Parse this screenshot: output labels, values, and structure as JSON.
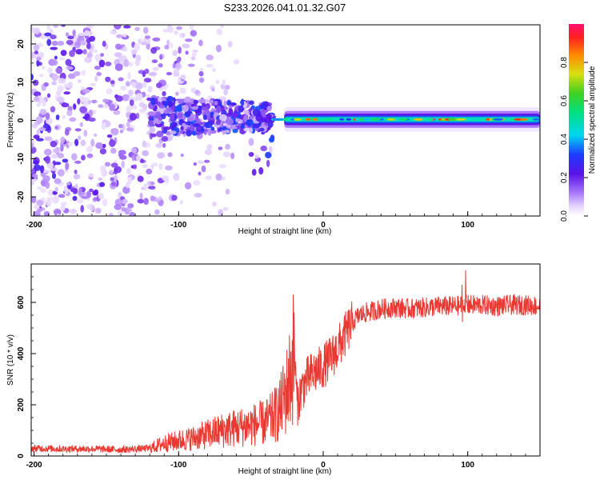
{
  "title": "S233.2026.041.01.32.G07",
  "chart_data": [
    {
      "type": "heatmap",
      "title": "S233.2026.041.01.32.G07",
      "xlabel": "Height of straight line (km)",
      "ylabel": "Frequency (Hz)",
      "xlim": [
        -202,
        150
      ],
      "ylim": [
        -25,
        25
      ],
      "xticks": [
        -200,
        -100,
        0,
        100
      ],
      "yticks": [
        -20,
        -10,
        0,
        10,
        20
      ],
      "colorbar": {
        "label": "Normalized spectral amplitude",
        "range": [
          0,
          1
        ],
        "ticks": [
          "0.0",
          "0.2",
          "0.4",
          "0.6",
          "0.8"
        ]
      },
      "regions": [
        {
          "name": "noise",
          "x": [
            -202,
            -120
          ],
          "freq": [
            -25,
            25
          ],
          "amplitude": [
            0.0,
            0.25
          ]
        },
        {
          "name": "onset",
          "x": [
            -120,
            -35
          ],
          "freq": [
            -5,
            8
          ],
          "amplitude": [
            0.05,
            0.35
          ]
        },
        {
          "name": "tone",
          "x": [
            -35,
            150
          ],
          "freq": [
            -0.5,
            1
          ],
          "amplitude": [
            0.3,
            0.95
          ]
        }
      ]
    },
    {
      "type": "line",
      "xlabel": "Height of straight line (km)",
      "ylabel": "SNR (10 * v/v)",
      "xlim": [
        -202,
        150
      ],
      "ylim": [
        0,
        750
      ],
      "xticks": [
        -200,
        -100,
        0,
        100
      ],
      "yticks": [
        0,
        200,
        400,
        600
      ],
      "color": "#e83a33",
      "series": [
        {
          "name": "SNR",
          "x": [
            -200,
            -180,
            -160,
            -140,
            -120,
            -110,
            -100,
            -90,
            -80,
            -70,
            -60,
            -50,
            -40,
            -35,
            -30,
            -25,
            -22,
            -20,
            -18,
            -15,
            -10,
            -5,
            0,
            5,
            10,
            15,
            20,
            25,
            30,
            40,
            50,
            60,
            70,
            80,
            90,
            100,
            110,
            120,
            130,
            140,
            150
          ],
          "y": [
            30,
            28,
            28,
            25,
            30,
            50,
            60,
            70,
            85,
            100,
            110,
            120,
            130,
            150,
            180,
            260,
            330,
            420,
            200,
            260,
            310,
            330,
            350,
            380,
            420,
            470,
            520,
            550,
            560,
            575,
            580,
            575,
            580,
            585,
            585,
            590,
            590,
            585,
            590,
            590,
            585
          ]
        }
      ]
    }
  ]
}
